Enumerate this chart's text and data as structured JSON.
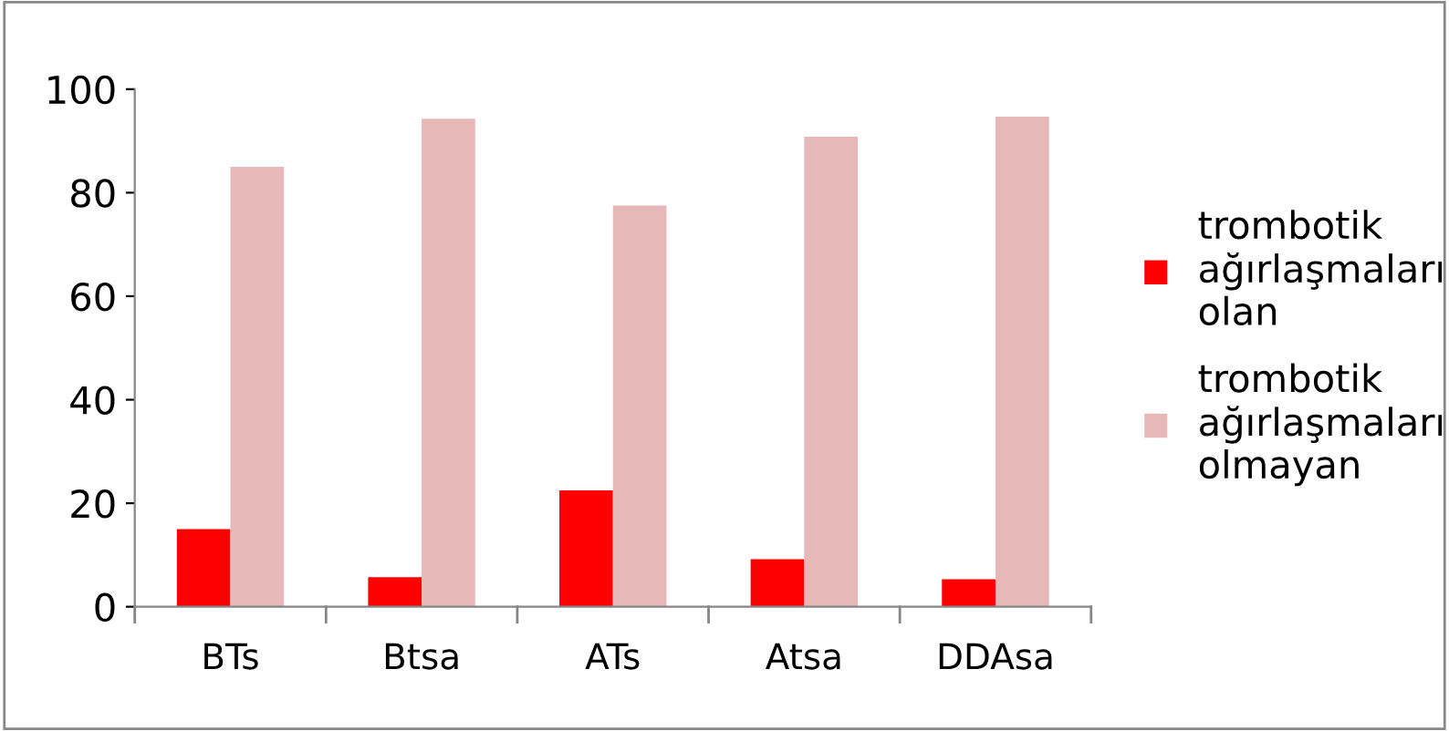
{
  "chart_data": {
    "type": "bar",
    "categories": [
      "BTs",
      "Btsa",
      "ATs",
      "Atsa",
      "DDAsa"
    ],
    "series": [
      {
        "name": "trombotik ağırlaşmaları olan",
        "color": "#ff0000",
        "values": [
          15,
          5.7,
          22.5,
          9.2,
          5.3
        ]
      },
      {
        "name": "trombotik ağırlaşmaları olmayan",
        "color": "#e6b8b7",
        "values": [
          85,
          94.3,
          77.5,
          90.8,
          94.7
        ]
      }
    ],
    "ylim": [
      0,
      100
    ],
    "yticks": [
      0,
      20,
      40,
      60,
      80,
      100
    ],
    "grid": false,
    "legend": "right"
  }
}
